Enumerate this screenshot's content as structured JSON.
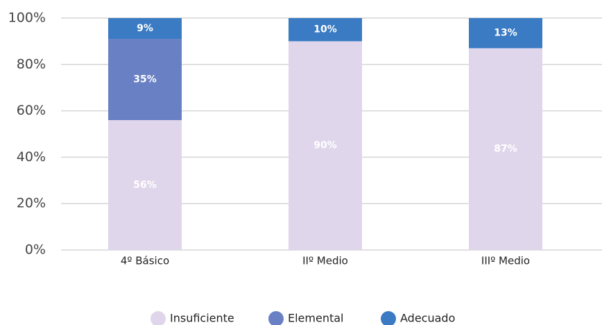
{
  "chart_data": {
    "type": "stacked_bar",
    "categories": [
      "4º Básico",
      "IIº Medio",
      "IIIº Medio"
    ],
    "series": [
      {
        "name": "Insuficiente",
        "color": "#e0d6eb",
        "values": [
          56,
          90,
          87
        ],
        "value_labels": [
          "56%",
          "90%",
          "87%"
        ]
      },
      {
        "name": "Elemental",
        "color": "#6a80c4",
        "values": [
          35,
          null,
          null
        ],
        "value_labels": [
          "35%",
          null,
          null
        ]
      },
      {
        "name": "Adecuado",
        "color": "#3a7bc3",
        "values": [
          9,
          10,
          13
        ],
        "value_labels": [
          "9%",
          "10%",
          "13%"
        ]
      }
    ],
    "ylim": [
      0,
      100
    ],
    "yticks": [
      {
        "value": 0,
        "label": "0%"
      },
      {
        "value": 20,
        "label": "20%"
      },
      {
        "value": 40,
        "label": "40%"
      },
      {
        "value": 60,
        "label": "60%"
      },
      {
        "value": 80,
        "label": "80%"
      },
      {
        "value": 100,
        "label": "100%"
      }
    ],
    "grid": true,
    "legend": "bottom"
  }
}
